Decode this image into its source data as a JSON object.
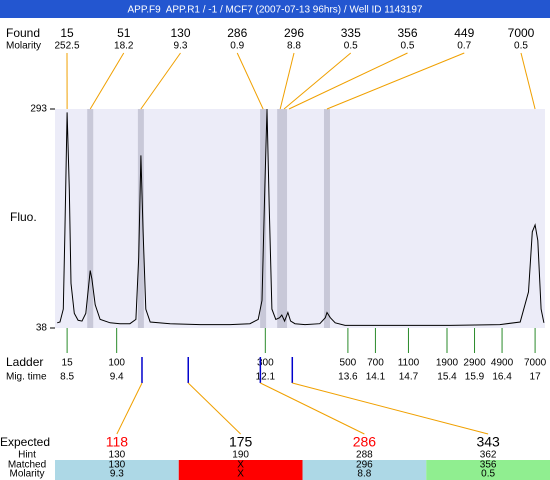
{
  "chart_data": {
    "type": "line",
    "title": "APP.F9  APP.R1 / -1 / MCF7 (2007-07-13 96hrs) / Well ID 1143197",
    "y_label": "Fluo.",
    "ylim": [
      38,
      293
    ],
    "yticks": [
      38,
      293
    ],
    "xlim": [
      8.28,
      17.18
    ],
    "x": [
      8.32,
      8.37,
      8.43,
      8.46,
      8.5,
      8.54,
      8.57,
      8.63,
      8.7,
      8.77,
      8.84,
      8.88,
      8.92,
      8.95,
      9.01,
      9.1,
      9.28,
      9.46,
      9.64,
      9.75,
      9.8,
      9.84,
      9.88,
      9.93,
      10.01,
      10.37,
      10.92,
      11.46,
      11.82,
      11.97,
      12.04,
      12.09,
      12.13,
      12.17,
      12.22,
      12.29,
      12.36,
      12.4,
      12.45,
      12.51,
      12.56,
      12.64,
      12.82,
      13.09,
      13.19,
      13.22,
      13.28,
      13.37,
      13.55,
      14.55,
      15.46,
      16.36,
      16.73,
      16.88,
      16.95,
      17.0,
      17.05,
      17.11,
      17.16
    ],
    "series": [
      {
        "color": "#000000",
        "values": [
          44,
          45,
          60,
          150,
          289,
          200,
          90,
          55,
          47,
          46,
          55,
          80,
          105,
          95,
          65,
          48,
          44,
          43,
          43,
          48,
          120,
          239,
          150,
          60,
          45,
          43,
          42,
          42,
          43,
          48,
          70,
          200,
          293,
          180,
          60,
          48,
          50,
          53,
          46,
          56,
          46,
          43,
          42,
          43,
          50,
          56,
          50,
          44,
          41,
          41,
          41,
          42,
          45,
          80,
          150,
          158,
          140,
          60,
          44
        ]
      }
    ],
    "found": {
      "label": "Found",
      "molarity_label": "Molarity",
      "sizes": [
        15,
        51,
        130,
        286,
        296,
        335,
        356,
        449,
        7000
      ],
      "molarity": [
        252.5,
        18.2,
        9.3,
        0.9,
        8.8,
        0.5,
        0.5,
        0.7,
        0.5
      ],
      "peak_times": [
        8.5,
        8.92,
        9.84,
        12.06,
        12.37,
        12.44,
        12.53,
        13.22,
        17.0
      ],
      "bands": [
        false,
        true,
        true,
        true,
        true,
        true,
        false,
        true,
        false
      ],
      "line_color": "#f0a000",
      "band_color": "#c8c8d8"
    },
    "ladder": {
      "label": "Ladder",
      "mig_time_label": "Mig. time",
      "sizes": [
        15,
        100,
        300,
        500,
        700,
        1100,
        1900,
        2900,
        4900,
        7000
      ],
      "mig_times": [
        8.5,
        9.4,
        12.1,
        13.6,
        14.1,
        14.7,
        15.4,
        15.9,
        16.4,
        17
      ],
      "color": "#2a8a2a"
    },
    "expected": {
      "label": "Expected",
      "hint_label": "Hint",
      "matched_label": "Matched",
      "molarity_label": "Molarity",
      "sizes": [
        118,
        175,
        286,
        343
      ],
      "size_colors": [
        "#ff0000",
        "#000000",
        "#ff0000",
        "#000000"
      ],
      "hint": [
        130,
        190,
        288,
        362
      ],
      "matched": [
        "130",
        "X",
        "296",
        "356"
      ],
      "molarity": [
        "9.3",
        "X",
        "8.8",
        "0.5"
      ],
      "cell_colors": [
        "#add8e6",
        "#ff0000",
        "#add8e6",
        "#90ee90"
      ],
      "times": [
        9.86,
        10.7,
        12.01,
        12.59
      ],
      "marker_color": "#0000cc"
    }
  }
}
